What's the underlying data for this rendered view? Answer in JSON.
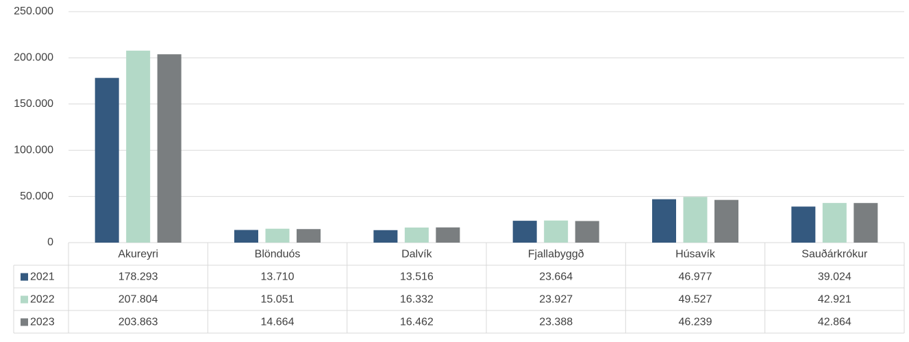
{
  "chart_data": {
    "type": "bar",
    "categories": [
      "Akureyri",
      "Blönduós",
      "Dalvík",
      "Fjallabyggð",
      "Húsavík",
      "Sauðárkrókur"
    ],
    "series": [
      {
        "name": "2021",
        "color": "#34597f",
        "values": [
          178293,
          13710,
          13516,
          23664,
          46977,
          39024
        ],
        "value_labels": [
          "178.293",
          "13.710",
          "13.516",
          "23.664",
          "46.977",
          "39.024"
        ]
      },
      {
        "name": "2022",
        "color": "#b3d9c7",
        "values": [
          207804,
          15051,
          16332,
          23927,
          49527,
          42921
        ],
        "value_labels": [
          "207.804",
          "15.051",
          "16.332",
          "23.927",
          "49.527",
          "42.921"
        ]
      },
      {
        "name": "2023",
        "color": "#7a7e80",
        "values": [
          203863,
          14664,
          16462,
          23388,
          46239,
          42864
        ],
        "value_labels": [
          "203.863",
          "14.664",
          "16.462",
          "23.388",
          "46.239",
          "42.864"
        ]
      }
    ],
    "ylim": [
      0,
      250000
    ],
    "yticks": [
      0,
      {
        "value": 50000,
        "label": "50.000"
      },
      {
        "value": 100000,
        "label": "100.000"
      },
      {
        "value": 150000,
        "label": "150.000"
      },
      {
        "value": 200000,
        "label": "200.000"
      },
      {
        "value": 250000,
        "label": "250.000"
      }
    ],
    "grid": true
  }
}
